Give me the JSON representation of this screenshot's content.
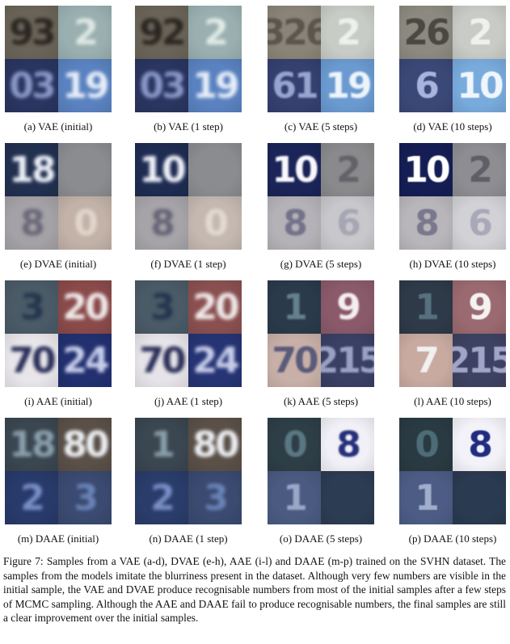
{
  "rows": [
    {
      "id": "vae",
      "panels": [
        {
          "caption": "(a) VAE (initial)",
          "tiles": [
            {
              "text": "93",
              "bg": "#6a6458",
              "fg": "#2a2622"
            },
            {
              "text": "2",
              "bg": "#9ab0b0",
              "fg": "#dfe8e4"
            },
            {
              "text": "03",
              "bg": "#2a3560",
              "fg": "#8a98c8"
            },
            {
              "text": "19",
              "bg": "#5a82c0",
              "fg": "#e8eef8"
            }
          ]
        },
        {
          "caption": "(b) VAE (1 step)",
          "tiles": [
            {
              "text": "92",
              "bg": "#6a6458",
              "fg": "#2a2622"
            },
            {
              "text": "2",
              "bg": "#9ab0b0",
              "fg": "#e2ebe6"
            },
            {
              "text": "03",
              "bg": "#2a3560",
              "fg": "#8a98c8"
            },
            {
              "text": "19",
              "bg": "#5a82c0",
              "fg": "#e8eef8"
            }
          ]
        },
        {
          "caption": "(c) VAE (5 steps)",
          "tiles": [
            {
              "text": "326",
              "bg": "#8a8478",
              "fg": "#5a564c"
            },
            {
              "text": "2",
              "bg": "#c8ccc6",
              "fg": "#eef0ec"
            },
            {
              "text": "61",
              "bg": "#354070",
              "fg": "#98a4d0"
            },
            {
              "text": "19",
              "bg": "#6a9ad0",
              "fg": "#eef4fb"
            }
          ]
        },
        {
          "caption": "(d) VAE (10 steps)",
          "tiles": [
            {
              "text": "26",
              "bg": "#8c8a80",
              "fg": "#4a4840"
            },
            {
              "text": "2",
              "bg": "#c8cbc6",
              "fg": "#f0f1ee"
            },
            {
              "text": "6",
              "bg": "#3a4878",
              "fg": "#a8b4dc"
            },
            {
              "text": "10",
              "bg": "#78aadc",
              "fg": "#f0f6fc"
            }
          ]
        }
      ]
    },
    {
      "id": "dvae",
      "panels": [
        {
          "caption": "(e) DVAE (initial)",
          "tiles": [
            {
              "text": "18",
              "bg": "#223050",
              "fg": "#eef2f8"
            },
            {
              "text": "",
              "bg": "#8a8c90",
              "fg": "#70727a"
            },
            {
              "text": "8",
              "bg": "#a4a2a6",
              "fg": "#6a6878"
            },
            {
              "text": "0",
              "bg": "#c2b2a8",
              "fg": "#e2d6cc"
            }
          ]
        },
        {
          "caption": "(f) DVAE (1 step)",
          "tiles": [
            {
              "text": "10",
              "bg": "#1e2c52",
              "fg": "#f2f4fa"
            },
            {
              "text": "",
              "bg": "#8a8c90",
              "fg": "#70727a"
            },
            {
              "text": "8",
              "bg": "#a6a4a8",
              "fg": "#666476"
            },
            {
              "text": "0",
              "bg": "#c4b8b0",
              "fg": "#e4dad2"
            }
          ]
        },
        {
          "caption": "(g) DVAE (5 steps)",
          "tiles": [
            {
              "text": "10",
              "bg": "#1a2458",
              "fg": "#f8f8fc"
            },
            {
              "text": "2",
              "bg": "#8a8a8c",
              "fg": "#626268"
            },
            {
              "text": "8",
              "bg": "#b4b2b6",
              "fg": "#74728a"
            },
            {
              "text": "6",
              "bg": "#c8c8cc",
              "fg": "#a6a6b2"
            }
          ]
        },
        {
          "caption": "(h) DVAE (10 steps)",
          "tiles": [
            {
              "text": "10",
              "bg": "#141e54",
              "fg": "#ffffff"
            },
            {
              "text": "2",
              "bg": "#8e8e92",
              "fg": "#5e5e66"
            },
            {
              "text": "8",
              "bg": "#b8b6ba",
              "fg": "#7a788c"
            },
            {
              "text": "6",
              "bg": "#d2d2d6",
              "fg": "#a8a8b8"
            }
          ]
        }
      ]
    },
    {
      "id": "aae",
      "panels": [
        {
          "caption": "(i) AAE (initial)",
          "tiles": [
            {
              "text": "3",
              "bg": "#4a5a66",
              "fg": "#24364e"
            },
            {
              "text": "20",
              "bg": "#8a4a4a",
              "fg": "#f0eaea"
            },
            {
              "text": "70",
              "bg": "#e8e6ea",
              "fg": "#2a2e58"
            },
            {
              "text": "24",
              "bg": "#223070",
              "fg": "#c8ceea"
            }
          ]
        },
        {
          "caption": "(j) AAE (1 step)",
          "tiles": [
            {
              "text": "3",
              "bg": "#4a5a66",
              "fg": "#24364e"
            },
            {
              "text": "20",
              "bg": "#8a5050",
              "fg": "#f0eaea"
            },
            {
              "text": "70",
              "bg": "#e6e4e8",
              "fg": "#2a2e58"
            },
            {
              "text": "24",
              "bg": "#263474",
              "fg": "#c8ceea"
            }
          ]
        },
        {
          "caption": "(k) AAE (5 steps)",
          "tiles": [
            {
              "text": "1",
              "bg": "#2a3a4a",
              "fg": "#66808e"
            },
            {
              "text": "9",
              "bg": "#8a5a6a",
              "fg": "#f4eef0"
            },
            {
              "text": "70",
              "bg": "#c8b0a8",
              "fg": "#5a5a7a"
            },
            {
              "text": "215",
              "bg": "#3a4064",
              "fg": "#9aa0c4"
            }
          ]
        },
        {
          "caption": "(l) AAE (10 steps)",
          "tiles": [
            {
              "text": "1",
              "bg": "#2e3a48",
              "fg": "#56707e"
            },
            {
              "text": "9",
              "bg": "#9a6a70",
              "fg": "#f6f2f2"
            },
            {
              "text": "7",
              "bg": "#c8aaa0",
              "fg": "#f2f0f0"
            },
            {
              "text": "215",
              "bg": "#3e4262",
              "fg": "#a0a6c8"
            }
          ]
        }
      ]
    },
    {
      "id": "daae",
      "panels": [
        {
          "caption": "(m) DAAE (initial)",
          "tiles": [
            {
              "text": "18",
              "bg": "#3a4650",
              "fg": "#8aa0ac"
            },
            {
              "text": "80",
              "bg": "#5a5048",
              "fg": "#eef0f4"
            },
            {
              "text": "2",
              "bg": "#283a6a",
              "fg": "#7a90c8"
            },
            {
              "text": "3",
              "bg": "#3a4a70",
              "fg": "#6a84b8"
            }
          ]
        },
        {
          "caption": "(n) DAAE (1 step)",
          "tiles": [
            {
              "text": "1",
              "bg": "#3a4650",
              "fg": "#8aa0ac"
            },
            {
              "text": "80",
              "bg": "#5a5048",
              "fg": "#eef0f4"
            },
            {
              "text": "2",
              "bg": "#2a3c6a",
              "fg": "#7a90c8"
            },
            {
              "text": "3",
              "bg": "#3a4a70",
              "fg": "#6a84b8"
            }
          ]
        },
        {
          "caption": "(o) DAAE (5 steps)",
          "tiles": [
            {
              "text": "0",
              "bg": "#2e3e46",
              "fg": "#5a7884"
            },
            {
              "text": "8",
              "bg": "#f0f0f6",
              "fg": "#26307a"
            },
            {
              "text": "1",
              "bg": "#4a5a80",
              "fg": "#9aa8c8"
            },
            {
              "text": "",
              "bg": "#2c3c52",
              "fg": "#4a6078"
            }
          ]
        },
        {
          "caption": "(p) DAAE (10 steps)",
          "tiles": [
            {
              "text": "0",
              "bg": "#2a3a42",
              "fg": "#4e6c78"
            },
            {
              "text": "8",
              "bg": "#f2f2f8",
              "fg": "#202c80"
            },
            {
              "text": "1",
              "bg": "#4c5c84",
              "fg": "#a0aecc"
            },
            {
              "text": "",
              "bg": "#2a3a50",
              "fg": "#48607a"
            }
          ]
        }
      ]
    }
  ],
  "figure_caption": "Figure 7: Samples from a VAE (a-d), DVAE (e-h), AAE (i-l) and DAAE (m-p) trained on the SVHN dataset. The samples from the models imitate the blurriness present in the dataset. Although very few numbers are visible in the initial sample, the VAE and DVAE produce recognisable numbers from most of the initial samples after a few steps of MCMC sampling. Although the AAE and DAAE fail to produce recognisable numbers, the final samples are still a clear improvement over the initial samples."
}
